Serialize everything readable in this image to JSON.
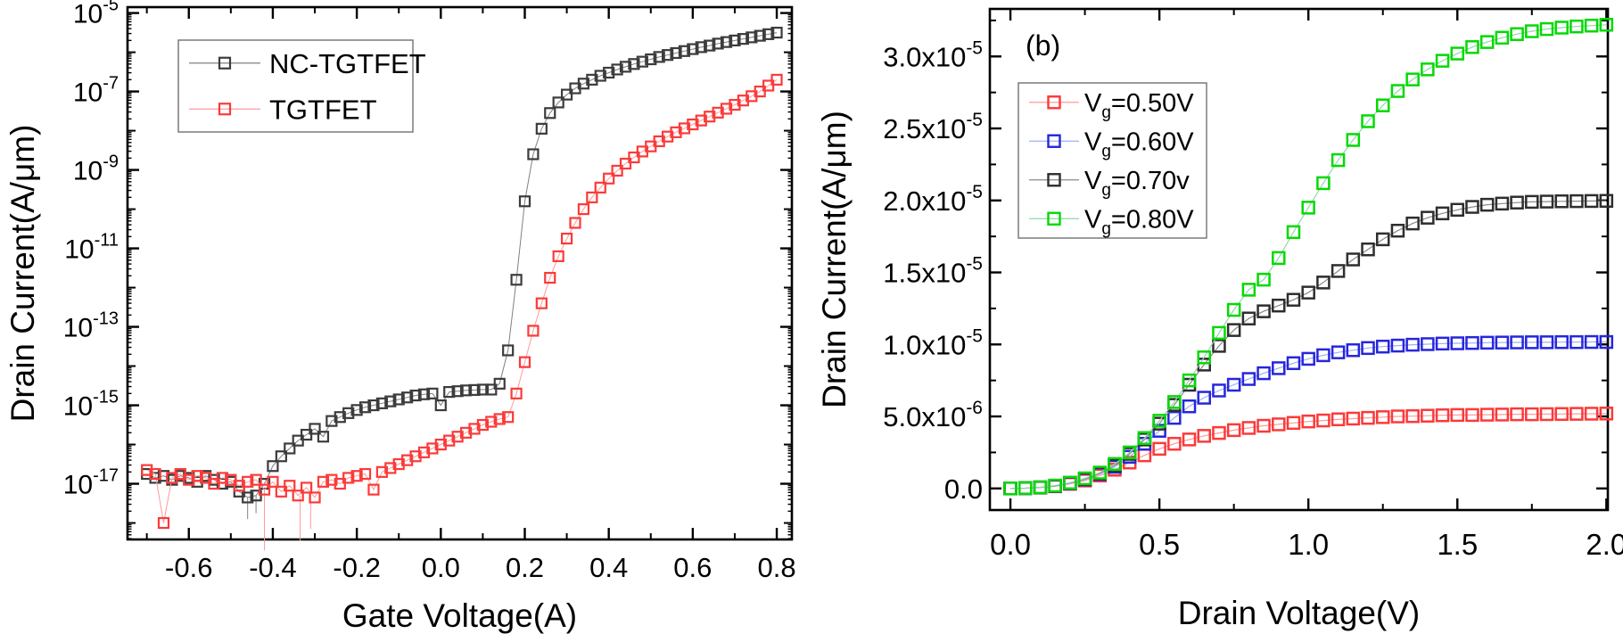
{
  "page": {
    "background": "#ffffff"
  },
  "chart_data": [
    {
      "id": "transfer",
      "type": "line",
      "title": "",
      "xlabel": "Gate Voltage(A)",
      "ylabel": "Drain Current(A/μm)",
      "xlim": [
        -0.746,
        0.836
      ],
      "x_major_ticks": [
        -0.6,
        -0.4,
        -0.2,
        0.0,
        0.2,
        0.4,
        0.6,
        0.8
      ],
      "x_major_labels": [
        "-0.6",
        "-0.4",
        "-0.2",
        "0.0",
        "0.2",
        "0.4",
        "0.6",
        "0.8"
      ],
      "x_minor_ticks": [
        -0.7,
        -0.5,
        -0.3,
        -0.1,
        0.1,
        0.3,
        0.5,
        0.7
      ],
      "yscale": "log",
      "ylim_log10": [
        -18.42,
        -4.85
      ],
      "y_labeled_exponents": [
        -5,
        -7,
        -9,
        -11,
        -13,
        -15,
        -17
      ],
      "y_tick_labels": [
        "10^-5",
        "10^-7",
        "10^-9",
        "10^-11",
        "10^-13",
        "10^-15",
        "10^-17"
      ],
      "grid": false,
      "legend": {
        "position": "upper-left",
        "items": [
          "NC-TGTFET",
          "TGTFET"
        ]
      },
      "x": [
        -0.7,
        -0.68,
        -0.66,
        -0.64,
        -0.62,
        -0.6,
        -0.58,
        -0.56,
        -0.54,
        -0.52,
        -0.5,
        -0.48,
        -0.46,
        -0.44,
        -0.42,
        -0.4,
        -0.38,
        -0.36,
        -0.34,
        -0.32,
        -0.3,
        -0.28,
        -0.26,
        -0.24,
        -0.22,
        -0.2,
        -0.18,
        -0.16,
        -0.14,
        -0.12,
        -0.1,
        -0.08,
        -0.06,
        -0.04,
        -0.02,
        0,
        0.02,
        0.04,
        0.06,
        0.08,
        0.1,
        0.12,
        0.14,
        0.16,
        0.18,
        0.2,
        0.22,
        0.24,
        0.26,
        0.28,
        0.3,
        0.32,
        0.34,
        0.36,
        0.38,
        0.4,
        0.42,
        0.44,
        0.46,
        0.48,
        0.5,
        0.52,
        0.54,
        0.56,
        0.58,
        0.6,
        0.62,
        0.64,
        0.66,
        0.68,
        0.7,
        0.72,
        0.74,
        0.76,
        0.78,
        0.8
      ],
      "series": [
        {
          "name": "NC-TGTFET",
          "marker_color": "#3c3c3c",
          "line_color": "#808080",
          "y_unit": "log10(A/μm)",
          "log10_y": [
            -16.75,
            -16.85,
            -16.8,
            -16.9,
            -16.8,
            -16.85,
            -16.95,
            -16.8,
            -16.9,
            -17.0,
            -16.95,
            -17.2,
            -17.35,
            -17.3,
            -17.0,
            -16.55,
            -16.3,
            -16.1,
            -15.9,
            -15.75,
            -15.6,
            -15.8,
            -15.4,
            -15.3,
            -15.2,
            -15.12,
            -15.05,
            -15.0,
            -14.95,
            -14.9,
            -14.85,
            -14.8,
            -14.75,
            -14.72,
            -14.7,
            -15.0,
            -14.66,
            -14.64,
            -14.62,
            -14.61,
            -14.6,
            -14.6,
            -14.45,
            -13.6,
            -11.8,
            -9.8,
            -8.6,
            -7.95,
            -7.55,
            -7.28,
            -7.08,
            -6.92,
            -6.8,
            -6.7,
            -6.6,
            -6.52,
            -6.44,
            -6.37,
            -6.3,
            -6.24,
            -6.18,
            -6.12,
            -6.07,
            -6.02,
            -5.97,
            -5.92,
            -5.87,
            -5.83,
            -5.78,
            -5.74,
            -5.7,
            -5.66,
            -5.62,
            -5.58,
            -5.54,
            -5.5
          ],
          "noise_spikes": [
            {
              "x": -0.46,
              "log10_from": -17.35,
              "log10_to": -17.9
            },
            {
              "x": -0.44,
              "log10_from": -17.3,
              "log10_to": -17.75
            }
          ]
        },
        {
          "name": "TGTFET",
          "marker_color": "#fb3a3a",
          "line_color": "#ff9a9a",
          "y_unit": "log10(A/μm)",
          "log10_y": [
            -16.65,
            -16.75,
            -18.0,
            -16.85,
            -16.75,
            -16.9,
            -16.8,
            -16.85,
            -17.0,
            -16.85,
            -16.9,
            -17.05,
            -16.95,
            -16.9,
            -17.15,
            -16.95,
            -17.2,
            -17.05,
            -17.3,
            -17.1,
            -17.35,
            -16.95,
            -16.9,
            -17.0,
            -16.85,
            -16.8,
            -16.75,
            -17.15,
            -16.7,
            -16.6,
            -16.5,
            -16.4,
            -16.3,
            -16.2,
            -16.1,
            -16.0,
            -15.9,
            -15.8,
            -15.7,
            -15.6,
            -15.5,
            -15.42,
            -15.35,
            -15.3,
            -14.7,
            -13.9,
            -13.1,
            -12.4,
            -11.75,
            -11.2,
            -10.75,
            -10.35,
            -10.0,
            -9.7,
            -9.45,
            -9.22,
            -9.02,
            -8.84,
            -8.68,
            -8.53,
            -8.4,
            -8.27,
            -8.15,
            -8.04,
            -7.94,
            -7.84,
            -7.74,
            -7.64,
            -7.54,
            -7.44,
            -7.34,
            -7.23,
            -7.12,
            -7.0,
            -6.85,
            -6.7
          ],
          "noise_spikes": [
            {
              "x": -0.42,
              "log10_from": -17.15,
              "log10_to": -18.7
            },
            {
              "x": -0.335,
              "log10_from": -17.3,
              "log10_to": -18.45
            },
            {
              "x": -0.31,
              "log10_from": -17.0,
              "log10_to": -18.15
            }
          ]
        }
      ]
    },
    {
      "id": "output",
      "type": "line",
      "panel_label": "(b)",
      "title": "",
      "xlabel": "Drain Voltage(V)",
      "ylabel": "Drain Current(A/μm)",
      "xlim": [
        -0.069,
        2.005
      ],
      "x_major_ticks": [
        0.0,
        0.5,
        1.0,
        1.5,
        2.0
      ],
      "x_major_labels": [
        "0.0",
        "0.5",
        "1.0",
        "1.5",
        "2.0"
      ],
      "x_minor_ticks": [
        0.25,
        0.75,
        1.25,
        1.75
      ],
      "yscale": "linear",
      "ylim": [
        -1.5e-06,
        3.33e-05
      ],
      "y_major_ticks_1e-6": [
        0,
        5,
        10,
        15,
        20,
        25,
        30
      ],
      "y_major_labels": [
        "0.0",
        "5.0x10^-6",
        "1.0x10^-5",
        "1.5x10^-5",
        "2.0x10^-5",
        "2.5x10^-5",
        "3.0x10^-5"
      ],
      "y_minor_ticks_1e-6": [
        2.5,
        7.5,
        12.5,
        17.5,
        22.5,
        27.5,
        32.5
      ],
      "grid": false,
      "legend": {
        "position": "upper-left",
        "items": [
          {
            "pre": "V",
            "sub": "g",
            "post": "=0.50V"
          },
          {
            "pre": "V",
            "sub": "g",
            "post": "=0.60V"
          },
          {
            "pre": "V",
            "sub": "g",
            "post": "=0.70v"
          },
          {
            "pre": "V",
            "sub": "g",
            "post": "=0.80V"
          }
        ]
      },
      "x": [
        0,
        0.05,
        0.1,
        0.15,
        0.2,
        0.25,
        0.3,
        0.35,
        0.4,
        0.45,
        0.5,
        0.55,
        0.6,
        0.65,
        0.7,
        0.75,
        0.8,
        0.85,
        0.9,
        0.95,
        1.0,
        1.05,
        1.1,
        1.15,
        1.2,
        1.25,
        1.3,
        1.35,
        1.4,
        1.45,
        1.5,
        1.55,
        1.6,
        1.65,
        1.7,
        1.75,
        1.8,
        1.85,
        1.9,
        1.95,
        2.0
      ],
      "y_unit": "1e-6 A/μm",
      "series": [
        {
          "name": "Vg=0.50V",
          "marker_color": "#fb3a3a",
          "line_color": "#ff9a9a",
          "y_1e-6": [
            0,
            0.02,
            0.06,
            0.15,
            0.32,
            0.55,
            0.9,
            1.3,
            1.8,
            2.3,
            2.75,
            3.1,
            3.4,
            3.65,
            3.85,
            4.05,
            4.2,
            4.35,
            4.45,
            4.55,
            4.65,
            4.72,
            4.8,
            4.85,
            4.9,
            4.95,
            5.0,
            5.02,
            5.05,
            5.08,
            5.1,
            5.1,
            5.12,
            5.13,
            5.15,
            5.15,
            5.16,
            5.17,
            5.18,
            5.19,
            5.2
          ]
        },
        {
          "name": "Vg=0.60V",
          "marker_color": "#2626dd",
          "line_color": "#9bb0f0",
          "y_1e-6": [
            0,
            0.02,
            0.07,
            0.17,
            0.36,
            0.62,
            1.0,
            1.5,
            2.2,
            3.1,
            4.0,
            4.9,
            5.7,
            6.3,
            6.8,
            7.2,
            7.6,
            8.0,
            8.35,
            8.7,
            9.0,
            9.25,
            9.45,
            9.6,
            9.75,
            9.85,
            9.92,
            9.98,
            10.02,
            10.06,
            10.08,
            10.1,
            10.12,
            10.13,
            10.14,
            10.15,
            10.15,
            10.16,
            10.16,
            10.17,
            10.17
          ]
        },
        {
          "name": "Vg=0.70v",
          "marker_color": "#2e2e2e",
          "line_color": "#8a8a8a",
          "y_1e-6": [
            0,
            0.02,
            0.07,
            0.18,
            0.38,
            0.65,
            1.05,
            1.6,
            2.4,
            3.4,
            4.5,
            5.8,
            7.2,
            8.6,
            9.9,
            11.0,
            11.8,
            12.3,
            12.7,
            13.1,
            13.6,
            14.3,
            15.1,
            15.9,
            16.6,
            17.3,
            17.9,
            18.4,
            18.8,
            19.1,
            19.35,
            19.55,
            19.7,
            19.78,
            19.85,
            19.9,
            19.92,
            19.94,
            19.95,
            19.96,
            19.97
          ]
        },
        {
          "name": "Vg=0.80V",
          "marker_color": "#04d904",
          "line_color": "#8fd8a8",
          "y_1e-6": [
            0,
            0.02,
            0.08,
            0.2,
            0.4,
            0.7,
            1.1,
            1.7,
            2.5,
            3.5,
            4.7,
            6.0,
            7.5,
            9.1,
            10.8,
            12.4,
            13.8,
            14.5,
            16.0,
            17.8,
            19.5,
            21.2,
            22.8,
            24.2,
            25.5,
            26.6,
            27.6,
            28.4,
            29.1,
            29.7,
            30.2,
            30.65,
            31.0,
            31.3,
            31.55,
            31.75,
            31.9,
            32.0,
            32.08,
            32.14,
            32.2
          ]
        }
      ]
    }
  ]
}
